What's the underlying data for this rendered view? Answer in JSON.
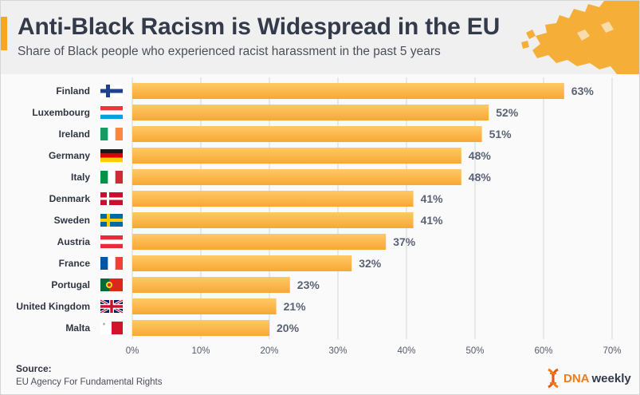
{
  "header": {
    "title": "Anti-Black Racism is Widespread in the EU",
    "subtitle": "Share of Black people who experienced racist harassment in the past 5 years"
  },
  "footer": {
    "source_title": "Source:",
    "source_text": "EU Agency For Fundamental Rights",
    "brand_dna": "DNA",
    "brand_weekly": "weekly"
  },
  "colors": {
    "bar": "#f7a833",
    "bar_highlight": "#ffc966",
    "grid": "#d7d7d7",
    "accent": "#f5a623",
    "map": "#f5a623"
  },
  "chart_data": {
    "type": "bar",
    "orientation": "horizontal",
    "categories": [
      "Finland",
      "Luxembourg",
      "Ireland",
      "Germany",
      "Italy",
      "Denmark",
      "Sweden",
      "Austria",
      "France",
      "Portugal",
      "United Kingdom",
      "Malta"
    ],
    "values": [
      63,
      52,
      51,
      48,
      48,
      41,
      41,
      37,
      32,
      23,
      21,
      20
    ],
    "value_labels": [
      "63%",
      "52%",
      "51%",
      "48%",
      "48%",
      "41%",
      "41%",
      "37%",
      "32%",
      "23%",
      "21%",
      "20%"
    ],
    "flags": [
      "finland-flag-icon",
      "luxembourg-flag-icon",
      "ireland-flag-icon",
      "germany-flag-icon",
      "italy-flag-icon",
      "denmark-flag-icon",
      "sweden-flag-icon",
      "austria-flag-icon",
      "france-flag-icon",
      "portugal-flag-icon",
      "united-kingdom-flag-icon",
      "malta-flag-icon"
    ],
    "xlim": [
      0,
      70
    ],
    "xticks": [
      "0%",
      "10%",
      "20%",
      "30%",
      "40%",
      "50%",
      "60%",
      "70%"
    ],
    "grid": true,
    "legend": "none"
  }
}
